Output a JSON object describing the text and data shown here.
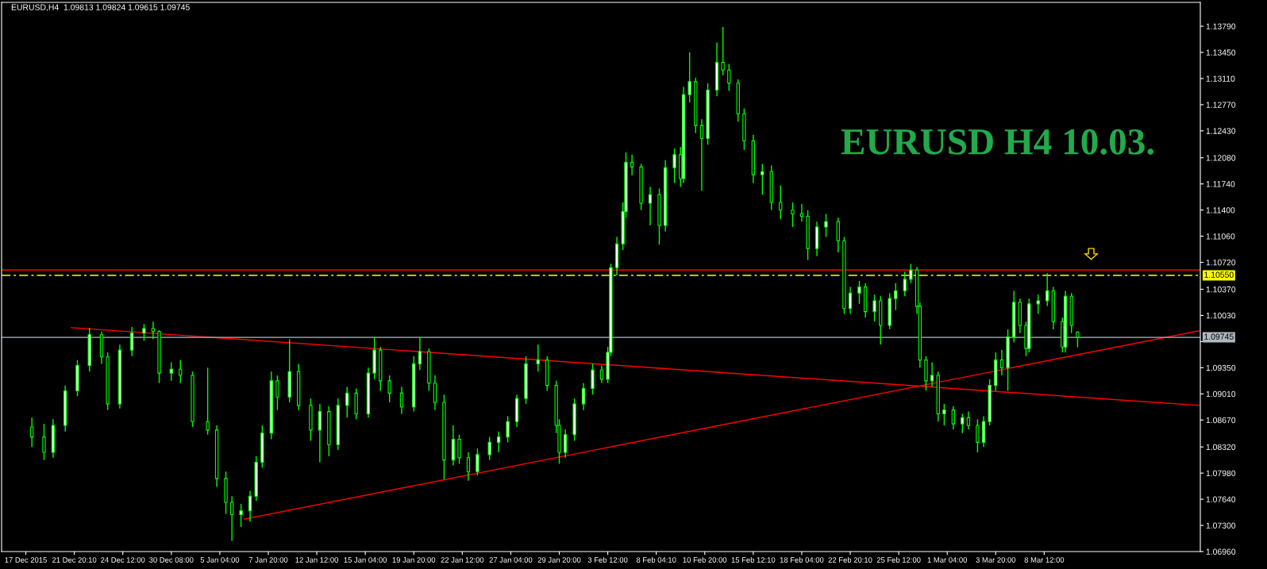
{
  "chart_data": {
    "type": "candlestick",
    "title": "EURUSD,H4  1.09813 1.09824 1.09615 1.09745",
    "annotations": [
      "EURUSD H4 10.03."
    ],
    "categories": [
      "17 Dec 2015",
      null,
      null,
      null,
      null,
      null,
      null,
      null,
      null,
      null,
      null,
      null,
      null,
      null,
      null,
      null,
      "21 Dec 20:10",
      null,
      null,
      null,
      null,
      null,
      null,
      null,
      null,
      null,
      null,
      null,
      null,
      null,
      null,
      null,
      "24 Dec 12:00",
      null,
      null,
      null,
      null,
      null,
      null,
      null,
      null,
      null,
      null,
      null,
      null,
      null,
      null,
      null,
      "30 Dec 08:00",
      null,
      null,
      null,
      null,
      null,
      null,
      null,
      null,
      null,
      null,
      null,
      null,
      null,
      null,
      null,
      "5 Jan 04:00",
      null,
      null,
      null,
      null,
      null,
      null,
      null,
      null,
      null,
      null,
      null,
      null,
      null,
      null,
      null,
      "7 Jan 20:00",
      null,
      null,
      null,
      null,
      null,
      null,
      null,
      null,
      null,
      null,
      null,
      null,
      null,
      null,
      null,
      "12 Jan 12:00",
      null,
      null,
      null,
      null,
      null,
      null,
      null,
      null,
      null,
      null,
      null,
      null,
      null,
      null,
      null,
      "15 Jan 04:00",
      null,
      null,
      null,
      null,
      null,
      null,
      null,
      null,
      null,
      null,
      null,
      null,
      null,
      null,
      null,
      "19 Jan 20:00",
      null,
      null,
      null,
      null,
      null,
      null,
      null,
      null,
      null,
      null,
      null,
      null,
      null,
      null,
      null,
      "22 Jan 12:00",
      null,
      null,
      null,
      null,
      null,
      null,
      null,
      null,
      null,
      null,
      null,
      null,
      null,
      null,
      null,
      "27 Jan 04:00",
      null,
      null,
      null,
      null,
      null,
      null,
      null,
      null,
      null,
      null,
      null,
      null,
      null,
      null,
      null,
      "29 Jan 20:00",
      null,
      null,
      null,
      null,
      null,
      null,
      null,
      null,
      null,
      null,
      null,
      null,
      null,
      null,
      null,
      "3 Feb 12:00",
      null,
      null,
      null,
      null,
      null,
      null,
      null,
      null,
      null,
      null,
      null,
      null,
      null,
      null,
      null,
      "8 Feb 04:10",
      null,
      null,
      null,
      null,
      null,
      null,
      null,
      null,
      null,
      null,
      null,
      null,
      null,
      null,
      null,
      "10 Feb 20:00",
      null,
      null,
      null,
      null,
      null,
      null,
      null,
      null,
      null,
      null,
      null,
      null,
      null,
      null,
      null,
      "15 Feb 12:10",
      null,
      null,
      null,
      null,
      null,
      null,
      null,
      null,
      null,
      null,
      null,
      null,
      null,
      null,
      null,
      "18 Feb 04:00",
      null,
      null,
      null,
      null,
      null,
      null,
      null,
      null,
      null,
      null,
      null,
      null,
      null,
      null,
      null,
      "22 Feb 20:10",
      null,
      null,
      null,
      null,
      null,
      null,
      null,
      null,
      null,
      null,
      null,
      null,
      null,
      null,
      null,
      "25 Feb 12:00",
      null,
      null,
      null,
      null,
      null,
      null,
      null,
      null,
      null,
      null,
      null,
      null,
      null,
      null,
      null,
      "1 Mar 04:00",
      null,
      null,
      null,
      null,
      null,
      null,
      null,
      null,
      null,
      null,
      null,
      null,
      null,
      null,
      null,
      "3 Mar 20:00",
      null,
      null,
      null,
      null,
      null,
      null,
      null,
      null,
      null,
      null,
      null,
      null,
      null,
      null,
      null,
      "8 Mar 12:00",
      null,
      null,
      null,
      null,
      null,
      null,
      null,
      null,
      null,
      null,
      null,
      null,
      null,
      null,
      null,
      null,
      null,
      null,
      null,
      null,
      null,
      null,
      null,
      null,
      null,
      null,
      null,
      null,
      null,
      null,
      null,
      null,
      null,
      null,
      null,
      null,
      null,
      null,
      null,
      null,
      null,
      null,
      null,
      null,
      null,
      null,
      null,
      null,
      null,
      null,
      null
    ],
    "ylim": [
      1.0696,
      1.141
    ],
    "yticks": [
      {
        "value": 1.0696,
        "label": "1.06960"
      },
      {
        "value": 1.073,
        "label": "1.07300"
      },
      {
        "value": 1.0764,
        "label": "1.07640"
      },
      {
        "value": 1.0798,
        "label": "1.07980"
      },
      {
        "value": 1.0832,
        "label": "1.08320"
      },
      {
        "value": 1.0867,
        "label": "1.08670"
      },
      {
        "value": 1.0901,
        "label": "1.09010"
      },
      {
        "value": 1.0935,
        "label": "1.09350"
      },
      {
        "value": 1.0969,
        "label": null
      },
      {
        "value": 1.1003,
        "label": "1.10030"
      },
      {
        "value": 1.1037,
        "label": "1.10370"
      },
      {
        "value": 1.1072,
        "label": "1.10720"
      },
      {
        "value": 1.1106,
        "label": "1.11060"
      },
      {
        "value": 1.114,
        "label": "1.11400"
      },
      {
        "value": 1.1174,
        "label": "1.11740"
      },
      {
        "value": 1.1208,
        "label": "1.12080"
      },
      {
        "value": 1.1243,
        "label": "1.12430"
      },
      {
        "value": 1.1277,
        "label": "1.12770"
      },
      {
        "value": 1.1311,
        "label": "1.13110"
      },
      {
        "value": 1.1345,
        "label": "1.13450"
      },
      {
        "value": 1.1379,
        "label": "1.13790"
      }
    ],
    "grid": false,
    "ref_lines": [
      {
        "axis": "y",
        "value": 1.1062,
        "color": "#ff0000",
        "line_style": "solid"
      },
      {
        "axis": "y",
        "value": 1.1055,
        "label": "1.10550",
        "color": "#ffff00",
        "line_style": "dashed"
      },
      {
        "axis": "y",
        "value": 1.09745,
        "label": "1.09745",
        "color": "#b0b8c0",
        "line_style": "solid"
      }
    ],
    "series": [
      {
        "color": "#00ff00",
        "ohlc": [
          null,
          null,
          [
            1.0858,
            1.087,
            1.0832,
            1.0845
          ],
          null,
          null,
          null,
          [
            1.0845,
            1.0862,
            1.0815,
            1.0825
          ],
          null,
          null,
          [
            1.0825,
            1.0868,
            1.0818,
            1.086
          ],
          null,
          null,
          null,
          [
            1.086,
            1.0912,
            1.0852,
            1.0905
          ],
          null,
          null,
          null,
          [
            1.0905,
            1.0945,
            1.0898,
            1.0938
          ],
          null,
          null,
          null,
          [
            1.0938,
            1.0987,
            1.093,
            1.0978
          ],
          null,
          null,
          null,
          [
            1.0978,
            1.0982,
            1.094,
            1.0949
          ],
          null,
          [
            1.0949,
            1.0955,
            1.088,
            1.0888
          ],
          null,
          null,
          null,
          [
            1.0888,
            1.0965,
            1.0882,
            1.0958
          ],
          null,
          null,
          null,
          [
            1.0958,
            1.0988,
            1.095,
            1.098
          ],
          null,
          null,
          null,
          [
            1.098,
            1.0992,
            1.097,
            1.0986
          ],
          null,
          null,
          [
            1.0986,
            1.0995,
            1.0972,
            1.0982
          ],
          null,
          [
            1.0982,
            1.0984,
            1.0915,
            1.0928
          ],
          null,
          null,
          null,
          [
            1.0928,
            1.0942,
            1.0918,
            1.0933
          ],
          null,
          null,
          [
            1.0933,
            1.0945,
            1.0915,
            1.0925
          ],
          null,
          null,
          null,
          [
            1.0925,
            1.093,
            1.0858,
            1.0865
          ],
          null,
          null,
          null,
          null,
          [
            1.0865,
            1.0935,
            1.0848,
            1.0854
          ],
          null,
          null,
          [
            1.0854,
            1.086,
            1.078,
            1.0791
          ],
          null,
          null,
          [
            1.0791,
            1.08,
            1.0745,
            1.076
          ],
          null,
          [
            1.076,
            1.0768,
            1.071,
            1.0744
          ],
          null,
          null,
          [
            1.0744,
            1.0758,
            1.0728,
            1.0749
          ],
          null,
          null,
          [
            1.0749,
            1.0775,
            1.0735,
            1.0768
          ],
          null,
          [
            1.0768,
            1.082,
            1.0762,
            1.0812
          ],
          null,
          [
            1.0812,
            1.086,
            1.0805,
            1.085
          ],
          null,
          null,
          [
            1.085,
            1.093,
            1.0842,
            1.0918
          ],
          null,
          [
            1.0918,
            1.0925,
            1.088,
            1.0897
          ],
          null,
          null,
          null,
          [
            1.0897,
            1.0972,
            1.089,
            1.093
          ],
          null,
          null,
          [
            1.093,
            1.094,
            1.088,
            1.0886
          ],
          null,
          null,
          null,
          [
            1.0886,
            1.0895,
            1.084,
            1.0854
          ],
          null,
          null,
          [
            1.0854,
            1.0888,
            1.0812,
            1.0878
          ],
          null,
          null,
          [
            1.0878,
            1.0885,
            1.082,
            1.0835
          ],
          null,
          null,
          [
            1.0835,
            1.0895,
            1.0828,
            1.0886
          ],
          null,
          null,
          [
            1.0886,
            1.091,
            1.087,
            1.0902
          ],
          null,
          null,
          [
            1.0902,
            1.0908,
            1.0868,
            1.0875
          ],
          null,
          null,
          null,
          [
            1.0875,
            1.0935,
            1.087,
            1.0928
          ],
          null,
          [
            1.0928,
            1.0975,
            1.092,
            1.0958
          ],
          null,
          [
            1.0958,
            1.0962,
            1.0905,
            1.0918
          ],
          null,
          null,
          [
            1.0918,
            1.0925,
            1.089,
            1.0902
          ],
          null,
          null,
          null,
          [
            1.0902,
            1.091,
            1.0875,
            1.0884
          ],
          null,
          null,
          null,
          [
            1.0884,
            1.095,
            1.0878,
            1.094
          ],
          null,
          [
            1.094,
            1.0975,
            1.0932,
            1.0956
          ],
          null,
          null,
          [
            1.0956,
            1.096,
            1.0905,
            1.0915
          ],
          null,
          [
            1.0915,
            1.0925,
            1.088,
            1.089
          ],
          null,
          null,
          [
            1.089,
            1.09,
            1.079,
            1.0815
          ],
          null,
          null,
          [
            1.0815,
            1.086,
            1.0808,
            1.0842
          ],
          null,
          [
            1.0842,
            1.0848,
            1.081,
            1.0818
          ],
          null,
          null,
          [
            1.0818,
            1.0825,
            1.0788,
            1.08
          ],
          null,
          null,
          [
            1.08,
            1.083,
            1.0795,
            1.0822
          ],
          null,
          null,
          null,
          [
            1.0822,
            1.0845,
            1.0815,
            1.0838
          ],
          null,
          null,
          [
            1.0838,
            1.0852,
            1.0825,
            1.0845
          ],
          null,
          null,
          [
            1.0845,
            1.0872,
            1.0838,
            1.0865
          ],
          null,
          null,
          [
            1.0865,
            1.09,
            1.0858,
            1.0895
          ],
          null,
          null,
          [
            1.0895,
            1.095,
            1.0888,
            1.094
          ],
          null,
          null,
          null,
          [
            1.094,
            1.0965,
            1.093,
            1.0945
          ],
          null,
          null,
          [
            1.0945,
            1.095,
            1.0905,
            1.0912
          ],
          null,
          null,
          [
            1.0912,
            1.0918,
            1.085,
            1.086
          ],
          [
            1.086,
            1.0868,
            1.081,
            1.0825
          ],
          null,
          [
            1.0825,
            1.0855,
            1.0818,
            1.0848
          ],
          null,
          null,
          [
            1.0848,
            1.0895,
            1.084,
            1.0888
          ],
          null,
          null,
          [
            1.0888,
            1.0915,
            1.088,
            1.0908
          ],
          null,
          null,
          [
            1.0908,
            1.094,
            1.09,
            1.0932
          ],
          null,
          null,
          [
            1.0932,
            1.0938,
            1.0915,
            1.092
          ],
          null,
          [
            1.092,
            1.0962,
            1.0915,
            1.0955
          ],
          [
            1.0955,
            1.107,
            1.095,
            1.1065
          ],
          null,
          [
            1.1065,
            1.1105,
            1.1055,
            1.1096
          ],
          null,
          [
            1.1096,
            1.115,
            1.1088,
            1.1138
          ],
          [
            1.1138,
            1.1215,
            1.113,
            1.1202
          ],
          null,
          [
            1.1202,
            1.1212,
            1.1185,
            1.1196
          ],
          null,
          null,
          [
            1.1196,
            1.12,
            1.114,
            1.1149
          ],
          null,
          null,
          [
            1.1149,
            1.117,
            1.112,
            1.116
          ],
          null,
          null,
          [
            1.116,
            1.1168,
            1.1095,
            1.112
          ],
          null,
          [
            1.112,
            1.1205,
            1.1112,
            1.1195
          ],
          null,
          null,
          [
            1.1195,
            1.122,
            1.1175,
            1.1212
          ],
          null,
          [
            1.1212,
            1.1222,
            1.117,
            1.1181
          ],
          [
            1.1181,
            1.13,
            1.1175,
            1.129
          ],
          null,
          [
            1.129,
            1.1345,
            1.128,
            1.1307
          ],
          null,
          [
            1.1307,
            1.1312,
            1.124,
            1.125
          ],
          null,
          [
            1.125,
            1.1258,
            1.1165,
            1.1233
          ],
          null,
          [
            1.1233,
            1.1305,
            1.1225,
            1.1296
          ],
          null,
          null,
          [
            1.1296,
            1.1358,
            1.1288,
            1.1332
          ],
          null,
          [
            1.1332,
            1.1378,
            1.1315,
            1.1322
          ],
          null,
          [
            1.1322,
            1.133,
            1.1295,
            1.1305
          ],
          null,
          null,
          [
            1.1305,
            1.131,
            1.1255,
            1.1265
          ],
          null,
          [
            1.1265,
            1.1272,
            1.1218,
            1.123
          ],
          null,
          null,
          [
            1.123,
            1.1238,
            1.1175,
            1.1186
          ],
          null,
          null,
          [
            1.1186,
            1.12,
            1.116,
            1.119
          ],
          null,
          null,
          [
            1.119,
            1.1198,
            1.114,
            1.115
          ],
          null,
          null,
          [
            1.115,
            1.1172,
            1.1128,
            1.114
          ],
          null,
          null,
          null,
          [
            1.114,
            1.115,
            1.1118,
            1.1135
          ],
          null,
          null,
          [
            1.1135,
            1.1148,
            1.1125,
            1.1132
          ],
          null,
          [
            1.1132,
            1.114,
            1.1075,
            1.109
          ],
          null,
          null,
          [
            1.109,
            1.1125,
            1.108,
            1.1118
          ],
          null,
          null,
          [
            1.1118,
            1.1135,
            1.1105,
            1.1125
          ],
          null,
          null,
          null,
          [
            1.1125,
            1.113,
            1.1085,
            1.11
          ],
          null,
          [
            1.11,
            1.1105,
            1.1005,
            1.1012
          ],
          null,
          [
            1.1012,
            1.104,
            1.1005,
            1.1032
          ],
          null,
          null,
          [
            1.1032,
            1.1048,
            1.1018,
            1.104
          ],
          null,
          [
            1.104,
            1.1045,
            1.1,
            1.1008
          ],
          null,
          null,
          [
            1.1008,
            1.103,
            1.0995,
            1.1022
          ],
          null,
          [
            1.1022,
            1.1028,
            1.0965,
            1.099
          ],
          null,
          null,
          [
            1.099,
            1.1032,
            1.0985,
            1.1025
          ],
          null,
          [
            1.1025,
            1.1045,
            1.101,
            1.1035
          ],
          null,
          null,
          [
            1.1035,
            1.106,
            1.1028,
            1.105
          ],
          null,
          [
            1.105,
            1.107,
            1.1045,
            1.1062
          ],
          null,
          [
            1.1062,
            1.1066,
            1.1005,
            1.1015
          ],
          [
            1.1015,
            1.102,
            1.0935,
            1.0945
          ],
          null,
          [
            1.0945,
            1.095,
            1.0905,
            1.0918
          ],
          null,
          [
            1.0918,
            1.0942,
            1.091,
            1.0925
          ],
          null,
          [
            1.0925,
            1.093,
            1.0865,
            1.0875
          ],
          null,
          [
            1.0875,
            1.0888,
            1.086,
            1.088
          ],
          null,
          null,
          [
            1.088,
            1.0885,
            1.0855,
            1.0862
          ],
          null,
          null,
          [
            1.0862,
            1.0875,
            1.085,
            1.087
          ],
          null,
          [
            1.087,
            1.0878,
            1.0855,
            1.086
          ],
          null,
          null,
          [
            1.086,
            1.0868,
            1.0825,
            1.0838
          ],
          null,
          [
            1.0838,
            1.0872,
            1.0832,
            1.0865
          ],
          null,
          [
            1.0865,
            1.092,
            1.086,
            1.0912
          ],
          null,
          [
            1.0912,
            1.0955,
            1.0905,
            1.0945
          ],
          null,
          [
            1.0945,
            1.0958,
            1.0925,
            1.0935
          ],
          null,
          [
            1.0935,
            1.0985,
            1.0905,
            1.0975
          ],
          null,
          [
            1.0975,
            1.1035,
            1.0968,
            1.102
          ],
          null,
          [
            1.102,
            1.1025,
            1.098,
            1.099
          ],
          null,
          [
            1.099,
            1.0995,
            1.095,
            1.096
          ],
          [
            1.096,
            1.1025,
            1.0955,
            1.1018
          ],
          null,
          null,
          [
            1.1018,
            1.103,
            1.1005,
            1.1022
          ],
          null,
          null,
          [
            1.1022,
            1.1058,
            1.1015,
            1.1035
          ],
          null,
          [
            1.1035,
            1.104,
            1.0985,
            1.0995
          ],
          null,
          null,
          [
            1.0995,
            1.1,
            1.0955,
            1.0962
          ],
          [
            1.0962,
            1.1035,
            1.0955,
            1.1028
          ],
          null,
          [
            1.1028,
            1.1032,
            1.098,
            1.099
          ],
          null,
          [
            1.09813,
            1.09824,
            1.09615,
            1.09745
          ],
          null,
          null,
          null,
          null,
          null,
          null,
          null,
          null,
          null,
          null,
          null,
          null,
          null,
          null,
          null,
          null,
          null,
          null,
          null,
          null,
          null,
          null,
          null,
          null,
          null,
          null,
          null,
          null,
          null,
          null,
          null,
          null,
          null,
          null,
          null,
          null,
          null,
          null,
          null,
          null
        ]
      },
      {
        "type": "line",
        "color": "#ff0000",
        "values": [
          null,
          null,
          null,
          null,
          null,
          null,
          null,
          null,
          null,
          null,
          null,
          null,
          null,
          null,
          null,
          1.0987,
          null,
          null,
          null,
          null,
          null,
          null,
          null,
          null,
          null,
          null,
          null,
          null,
          null,
          null,
          null,
          null,
          null,
          null,
          null,
          null,
          null,
          null,
          null,
          null,
          null,
          null,
          null,
          null,
          null,
          null,
          null,
          null,
          null,
          null,
          null,
          null,
          null,
          null,
          null,
          null,
          null,
          null,
          null,
          null,
          null,
          null,
          null,
          null,
          null,
          null,
          null,
          null,
          null,
          null,
          null,
          null,
          null,
          null,
          null,
          null,
          null,
          null,
          null,
          null,
          null,
          null,
          null,
          null,
          null,
          null,
          null,
          null,
          null,
          null,
          null,
          null,
          null,
          null,
          null,
          null,
          null,
          null,
          null,
          null,
          null,
          null,
          null,
          null,
          null,
          null,
          null,
          null,
          null,
          null,
          null,
          null,
          null,
          null,
          null,
          null,
          null,
          null,
          null,
          null,
          null,
          null,
          null,
          null,
          null,
          null,
          null,
          null,
          null,
          null,
          null,
          null,
          null,
          null,
          null,
          null,
          null,
          null,
          null,
          null,
          null,
          null,
          null,
          null,
          null,
          null,
          null,
          null,
          null,
          null,
          null,
          null,
          null,
          null,
          null,
          null,
          null,
          null,
          null,
          null,
          null,
          null,
          null,
          null,
          null,
          null,
          null,
          null,
          null,
          null,
          null,
          null,
          null,
          null,
          null,
          null,
          null,
          null,
          null,
          null,
          null,
          null,
          null,
          null,
          null,
          null,
          null,
          null,
          null,
          null,
          null,
          null,
          null,
          null,
          null,
          null,
          null,
          null,
          null,
          null,
          null,
          null,
          null,
          null,
          null,
          null,
          null,
          null,
          null,
          null,
          null,
          null,
          null,
          null,
          null,
          null,
          null,
          null,
          null,
          null,
          null,
          null,
          null,
          null,
          null,
          null,
          null,
          null,
          null,
          null,
          null,
          null,
          null,
          null,
          null,
          null,
          null,
          null,
          null,
          null,
          null,
          null,
          null,
          null,
          null,
          null,
          null,
          null,
          null,
          null,
          null,
          null,
          null,
          null,
          null,
          null,
          null,
          null,
          null,
          null,
          null,
          null,
          null,
          null,
          null,
          null,
          null,
          null,
          null,
          null,
          null,
          null,
          null,
          null,
          null,
          null,
          null,
          null,
          null,
          null,
          null,
          null,
          null,
          null,
          null,
          null,
          null,
          null,
          null,
          null,
          null,
          null,
          null,
          null,
          null,
          null,
          null,
          null,
          null,
          null,
          null,
          null,
          null,
          null,
          null,
          null,
          null,
          null,
          null,
          null,
          null,
          null,
          null,
          null,
          null,
          null,
          null,
          null,
          null,
          null,
          null,
          null,
          null,
          null,
          null,
          null,
          null,
          null,
          null,
          null,
          null,
          null,
          null,
          null,
          null,
          null,
          null,
          null,
          null,
          null,
          null,
          null,
          null,
          null,
          null,
          null,
          null,
          null,
          null,
          null,
          null,
          null,
          null,
          null,
          null,
          null,
          null,
          null,
          null,
          null,
          null,
          null,
          null,
          null,
          null,
          null,
          null,
          null,
          null,
          null,
          null,
          null,
          null,
          null,
          null,
          null,
          null,
          null,
          null,
          null,
          null,
          null,
          null,
          null,
          null,
          null,
          null,
          1.0886
        ]
      },
      {
        "type": "line",
        "color": "#ff0000",
        "values": [
          null,
          null,
          null,
          null,
          null,
          null,
          null,
          null,
          null,
          null,
          null,
          null,
          null,
          null,
          null,
          null,
          null,
          null,
          null,
          null,
          null,
          null,
          null,
          null,
          null,
          null,
          null,
          null,
          null,
          null,
          null,
          null,
          null,
          null,
          null,
          null,
          null,
          null,
          null,
          null,
          null,
          null,
          null,
          null,
          null,
          null,
          null,
          null,
          null,
          null,
          null,
          null,
          null,
          null,
          null,
          null,
          null,
          null,
          null,
          null,
          null,
          null,
          null,
          null,
          null,
          null,
          null,
          null,
          null,
          null,
          null,
          null,
          1.0738,
          null,
          null,
          null,
          null,
          null,
          null,
          null,
          null,
          null,
          null,
          null,
          null,
          null,
          null,
          null,
          null,
          null,
          null,
          null,
          null,
          null,
          null,
          null,
          null,
          null,
          null,
          null,
          null,
          null,
          null,
          null,
          null,
          null,
          null,
          null,
          null,
          null,
          null,
          null,
          null,
          null,
          null,
          null,
          null,
          null,
          null,
          null,
          null,
          null,
          null,
          null,
          null,
          null,
          null,
          null,
          null,
          null,
          null,
          null,
          null,
          null,
          null,
          null,
          null,
          null,
          null,
          null,
          null,
          null,
          null,
          null,
          null,
          null,
          null,
          null,
          null,
          null,
          null,
          null,
          null,
          null,
          null,
          null,
          null,
          null,
          null,
          null,
          null,
          null,
          null,
          null,
          null,
          null,
          null,
          null,
          null,
          null,
          null,
          null,
          null,
          null,
          null,
          null,
          null,
          null,
          null,
          null,
          null,
          null,
          null,
          null,
          null,
          null,
          null,
          null,
          null,
          null,
          null,
          null,
          null,
          null,
          null,
          null,
          null,
          null,
          null,
          null,
          null,
          null,
          null,
          null,
          null,
          null,
          null,
          null,
          null,
          null,
          null,
          null,
          null,
          null,
          null,
          null,
          null,
          null,
          null,
          null,
          null,
          null,
          null,
          null,
          null,
          null,
          null,
          null,
          null,
          null,
          null,
          null,
          null,
          null,
          null,
          null,
          null,
          null,
          null,
          null,
          null,
          null,
          null,
          null,
          null,
          null,
          null,
          null,
          null,
          null,
          null,
          null,
          null,
          null,
          null,
          null,
          null,
          null,
          null,
          null,
          null,
          null,
          null,
          null,
          null,
          null,
          null,
          null,
          null,
          null,
          null,
          null,
          null,
          null,
          null,
          null,
          null,
          null,
          null,
          null,
          null,
          null,
          null,
          null,
          null,
          null,
          null,
          null,
          null,
          null,
          null,
          null,
          null,
          null,
          null,
          null,
          null,
          null,
          null,
          null,
          null,
          null,
          null,
          null,
          null,
          null,
          null,
          null,
          null,
          null,
          null,
          null,
          null,
          null,
          null,
          null,
          null,
          null,
          null,
          null,
          null,
          null,
          null,
          null,
          null,
          null,
          null,
          null,
          null,
          null,
          null,
          null,
          null,
          null,
          null,
          null,
          null,
          null,
          null,
          null,
          null,
          null,
          null,
          null,
          null,
          null,
          null,
          null,
          null,
          null,
          null,
          null,
          null,
          null,
          null,
          null,
          null,
          null,
          null,
          null,
          null,
          null,
          null,
          null,
          null,
          null,
          null,
          null,
          null,
          null,
          null,
          null,
          null,
          null,
          null,
          null,
          null,
          null,
          null,
          null,
          null,
          null,
          null,
          null,
          null,
          null,
          null,
          1.0983
        ]
      }
    ]
  }
}
